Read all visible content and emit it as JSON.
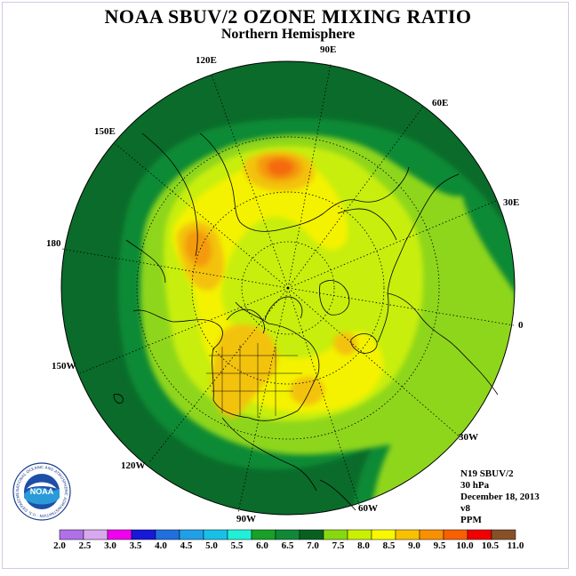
{
  "title": "NOAA SBUV/2 OZONE MIXING RATIO",
  "subtitle": "Northern Hemisphere",
  "longitude_labels": [
    "90E",
    "60E",
    "30E",
    "0",
    "30W",
    "60W",
    "90W",
    "120W",
    "150W",
    "180",
    "150E",
    "120E"
  ],
  "info": {
    "satellite": "N19 SBUV/2",
    "level": "30 hPa",
    "date": "December 18, 2013",
    "version": "v8",
    "units": "PPM"
  },
  "colorbar": {
    "ticks": [
      "2.0",
      "2.5",
      "3.0",
      "3.5",
      "4.0",
      "4.5",
      "5.0",
      "5.5",
      "6.0",
      "6.5",
      "7.0",
      "7.5",
      "8.0",
      "8.5",
      "9.0",
      "9.5",
      "10.0",
      "10.5",
      "11.0"
    ],
    "colors": [
      "#b070e8",
      "#d8a8f0",
      "#f000f0",
      "#1818d8",
      "#2070e0",
      "#20a0e8",
      "#18c0e8",
      "#20f0d8",
      "#18a028",
      "#108838",
      "#086020",
      "#88d810",
      "#c8f000",
      "#f8f800",
      "#f8c000",
      "#f89000",
      "#f86000",
      "#f00000",
      "#885028"
    ]
  },
  "map_colors": {
    "ocean_ring": "#0b6b2a",
    "band_65": "#0e8a36",
    "band_75": "#8ed61a",
    "band_80": "#c8ee10",
    "band_85": "#f4f200",
    "band_90": "#f3c20a",
    "band_95": "#f49a0c",
    "band_100": "#f46a10"
  },
  "logo": {
    "text": "NOAA",
    "ring_text": "NATIONAL OCEANIC AND ATMOSPHERIC ADMINISTRATION · U.S. DEPARTMENT OF COMMERCE"
  }
}
